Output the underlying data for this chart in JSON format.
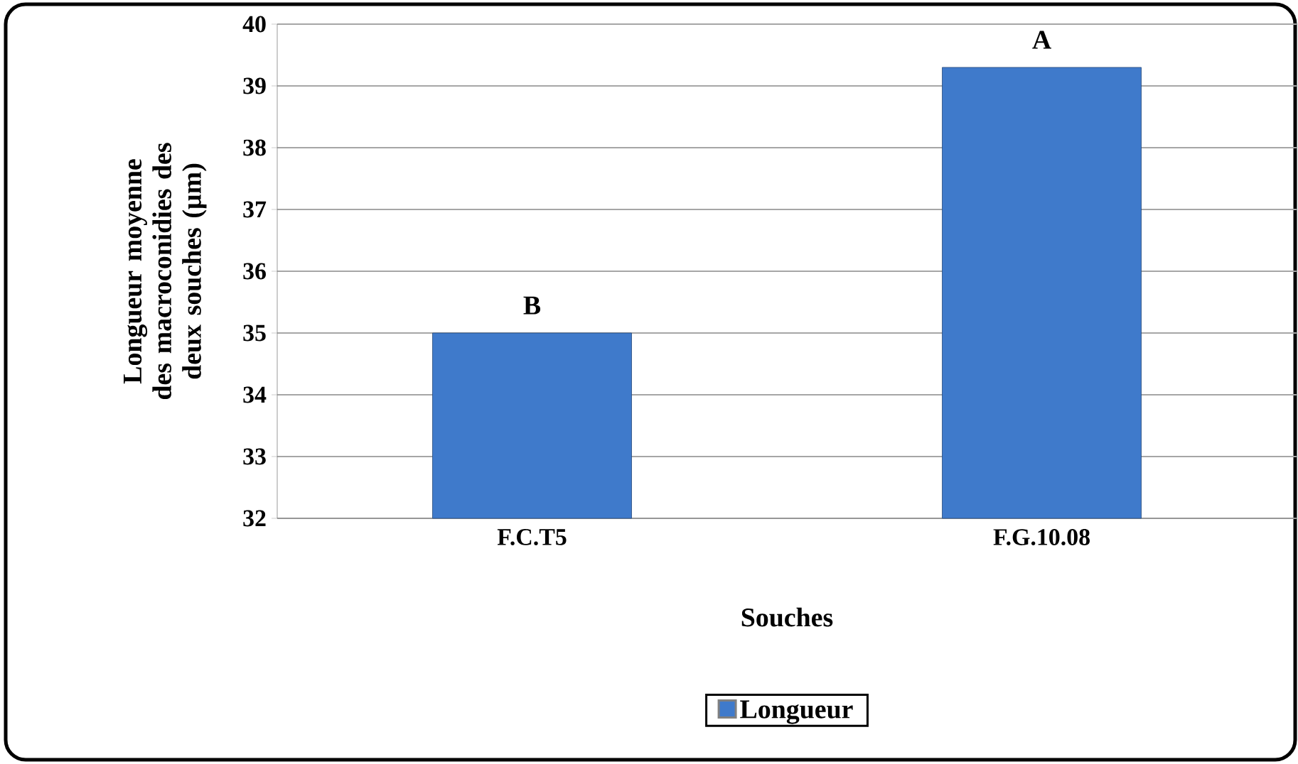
{
  "chart_data": {
    "type": "bar",
    "xlabel": "Souches",
    "ylabel": "Longueur moyenne des macroconidies des deux souches (µm)",
    "categories": [
      "F.C.T5",
      "F.G.10.08"
    ],
    "series": [
      {
        "name": "Longueur",
        "color": "#3f7acb",
        "values": [
          35.0,
          39.3
        ]
      }
    ],
    "ylim": [
      32,
      40
    ],
    "yticks": [
      32,
      33,
      34,
      35,
      36,
      37,
      38,
      39,
      40
    ],
    "grid": "y",
    "legend": "bottom",
    "annotations": [
      {
        "text": "B",
        "x": "F.C.T5",
        "y": 35.0
      },
      {
        "text": "A",
        "x": "F.G.10.08",
        "y": 39.3
      }
    ]
  }
}
